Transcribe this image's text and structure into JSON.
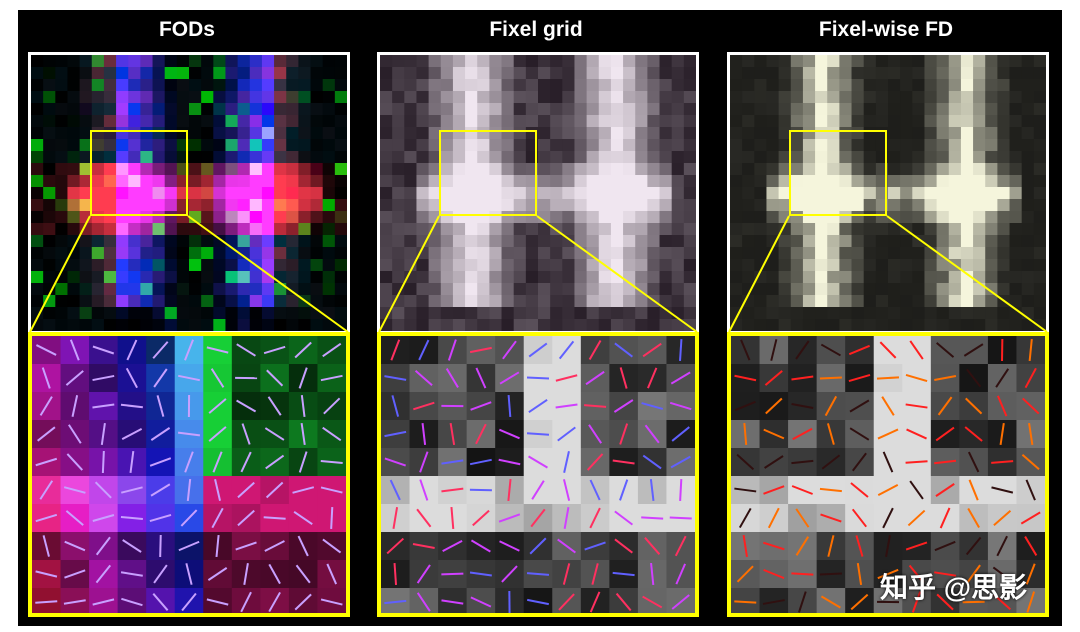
{
  "panels": [
    {
      "title": "FODs",
      "accent": "#ffff00",
      "style": "fod"
    },
    {
      "title": "Fixel grid",
      "accent": "#ffff00",
      "style": "grid"
    },
    {
      "title": "Fixel-wise FD",
      "accent": "#ffff00",
      "style": "fd"
    }
  ],
  "watermark": "知乎 @思影",
  "colors": {
    "frame": "#000000",
    "highlight": "#ffff00",
    "border": "#ffffff"
  }
}
